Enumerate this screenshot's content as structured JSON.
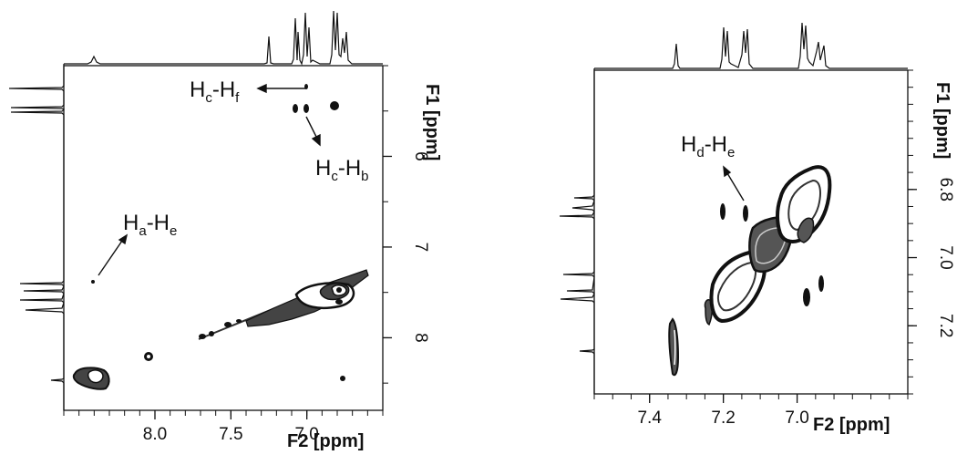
{
  "figure_panels": [
    {
      "x_axis_label": "F2 [ppm]",
      "y_axis_label": "F1 [ppm]",
      "annotations": [
        {
          "main": "H",
          "sub1": "c",
          "mid": "-H",
          "sub2": "f"
        },
        {
          "main": "H",
          "sub1": "c",
          "mid": "-H",
          "sub2": "b"
        },
        {
          "main": "H",
          "sub1": "a",
          "mid": "-H",
          "sub2": "e"
        }
      ]
    },
    {
      "x_axis_label": "F2 [ppm]",
      "y_axis_label": "F1 [ppm]",
      "annotations": [
        {
          "main": "H",
          "sub1": "d",
          "mid": "-H",
          "sub2": "e"
        }
      ]
    }
  ],
  "chart_data": [
    {
      "type": "heatmap",
      "subtype": "2D NMR contour plot",
      "xlabel": "F2 [ppm]",
      "ylabel": "F1 [ppm]",
      "xlim": [
        8.6,
        6.5
      ],
      "ylim": [
        5.0,
        8.8
      ],
      "x_ticks": [
        8.0,
        7.5,
        7.0
      ],
      "x_tick_labels": [
        "8.0",
        "7.5",
        "7.0"
      ],
      "y_ticks": [
        6,
        7,
        8
      ],
      "y_tick_labels": [
        "6",
        "7",
        "8"
      ],
      "grid": false,
      "diagonal_peaks": [
        {
          "x": 8.4,
          "y": 8.4
        },
        {
          "x": 8.05,
          "y": 8.05
        },
        {
          "x": 7.72,
          "y": 7.72
        },
        {
          "x": 7.55,
          "y": 7.55
        },
        {
          "x": 7.45,
          "y": 7.45
        },
        {
          "x": 7.3,
          "y": 7.3
        },
        {
          "x": 7.2,
          "y": 7.2
        },
        {
          "x": 7.1,
          "y": 7.1
        },
        {
          "x": 7.0,
          "y": 7.0
        },
        {
          "x": 6.85,
          "y": 6.85
        }
      ],
      "cross_peaks": [
        {
          "x": 7.02,
          "y": 5.3
        },
        {
          "x": 7.08,
          "y": 5.55
        },
        {
          "x": 7.04,
          "y": 5.55
        },
        {
          "x": 6.85,
          "y": 5.52
        },
        {
          "x": 8.4,
          "y": 6.75
        },
        {
          "x": 6.82,
          "y": 8.45
        },
        {
          "x": 6.85,
          "y": 7.15
        }
      ],
      "annotation_labels": [
        "Hc-Hf",
        "Hc-Hb",
        "Ha-He"
      ]
    },
    {
      "type": "heatmap",
      "subtype": "2D NMR contour plot",
      "xlabel": "F2 [ppm]",
      "ylabel": "F1 [ppm]",
      "xlim": [
        7.55,
        6.7
      ],
      "ylim": [
        6.45,
        7.4
      ],
      "x_ticks": [
        7.4,
        7.2,
        7.0
      ],
      "x_tick_labels": [
        "7.4",
        "7.2",
        "7.0"
      ],
      "y_ticks": [
        6.8,
        7.0,
        7.2
      ],
      "y_tick_labels": [
        "6.8",
        "7.0",
        "7.2"
      ],
      "grid": false,
      "diagonal_peaks": [
        {
          "x": 7.26,
          "y": 7.26
        },
        {
          "x": 7.1,
          "y": 7.1
        },
        {
          "x": 7.02,
          "y": 7.02
        },
        {
          "x": 6.96,
          "y": 6.96
        },
        {
          "x": 6.88,
          "y": 6.88
        },
        {
          "x": 6.82,
          "y": 6.82
        }
      ],
      "cross_peaks": [
        {
          "x": 7.09,
          "y": 6.8
        },
        {
          "x": 7.03,
          "y": 6.8
        },
        {
          "x": 6.87,
          "y": 7.1
        },
        {
          "x": 6.82,
          "y": 7.07
        }
      ],
      "annotation_labels": [
        "Hd-He"
      ]
    }
  ]
}
